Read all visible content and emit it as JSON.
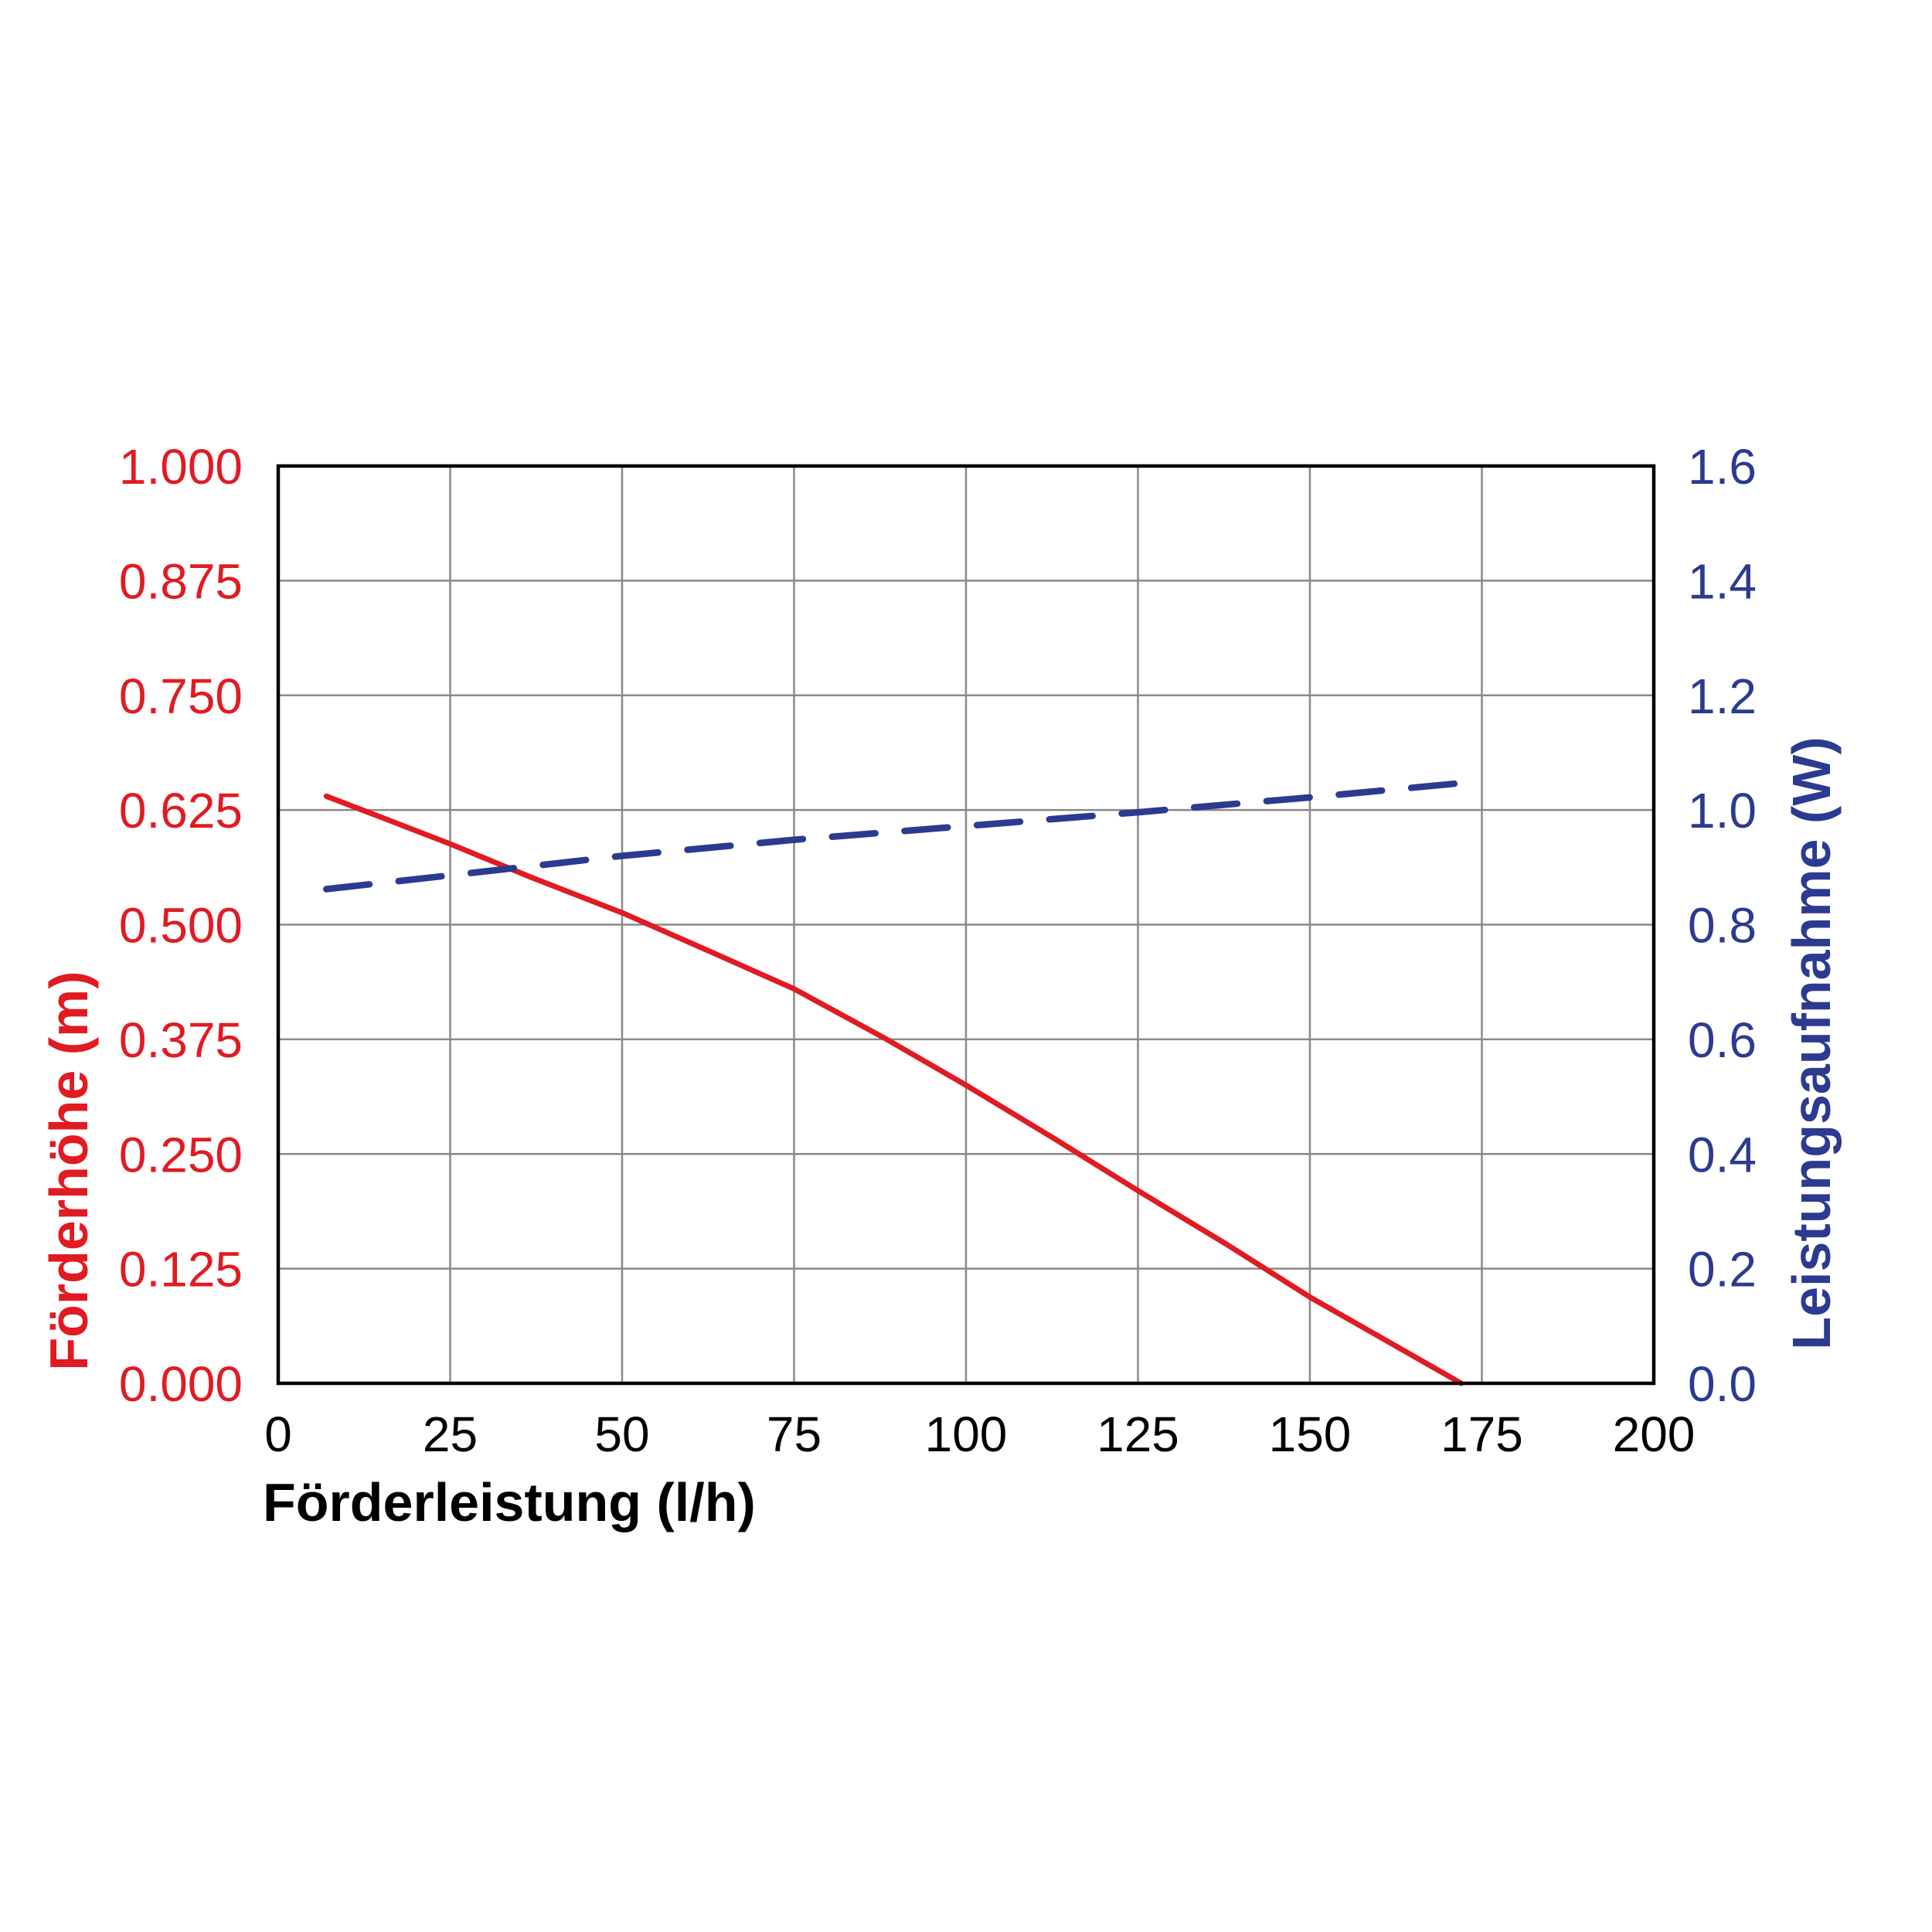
{
  "chart_data": {
    "type": "line",
    "title": "",
    "xlabel": "Förderleistung (l/h)",
    "ylabel_left": "Förderhöhe (m)",
    "ylabel_right": "Leistungsaufnahme (W)",
    "grid": true,
    "legend_position": "none",
    "x_axis": {
      "min": 0,
      "max": 200,
      "tick_step": 25,
      "tick_labels": [
        "0",
        "25",
        "50",
        "75",
        "100",
        "125",
        "150",
        "175",
        "200"
      ],
      "color": "#000000"
    },
    "y_axis_left": {
      "min": 0.0,
      "max": 1.0,
      "tick_step": 0.125,
      "tick_labels": [
        "1.000",
        "0.875",
        "0.750",
        "0.625",
        "0.500",
        "0.375",
        "0.250",
        "0.125",
        "0.000"
      ],
      "color": "#e11b22"
    },
    "y_axis_right": {
      "min": 0.0,
      "max": 1.6,
      "tick_step": 0.2,
      "tick_labels": [
        "1.6",
        "1.4",
        "1.2",
        "1.0",
        "0.8",
        "0.6",
        "0.4",
        "0.2",
        "0.0"
      ],
      "color": "#2c3a90"
    },
    "series": [
      {
        "name": "Förderhöhe (m)",
        "axis": "left",
        "color": "#e11b22",
        "line_style": "solid",
        "points": [
          [
            7,
            0.64
          ],
          [
            15,
            0.617
          ],
          [
            25,
            0.588
          ],
          [
            37,
            0.551
          ],
          [
            50,
            0.513
          ],
          [
            63,
            0.47
          ],
          [
            75,
            0.43
          ],
          [
            88,
            0.377
          ],
          [
            100,
            0.325
          ],
          [
            113,
            0.266
          ],
          [
            125,
            0.21
          ],
          [
            138,
            0.151
          ],
          [
            150,
            0.094
          ],
          [
            161,
            0.047
          ],
          [
            172,
            0.0
          ]
        ]
      },
      {
        "name": "Leistungsaufnahme (W)",
        "axis": "right",
        "color": "#2c3a90",
        "line_style": "dashed",
        "points": [
          [
            7,
            0.862
          ],
          [
            25,
            0.886
          ],
          [
            50,
            0.92
          ],
          [
            75,
            0.948
          ],
          [
            100,
            0.972
          ],
          [
            125,
            0.996
          ],
          [
            150,
            1.022
          ],
          [
            173,
            1.048
          ]
        ]
      }
    ]
  },
  "style": {
    "grid_color": "#8a8a8a",
    "border_color": "#000000",
    "background": "#ffffff"
  }
}
